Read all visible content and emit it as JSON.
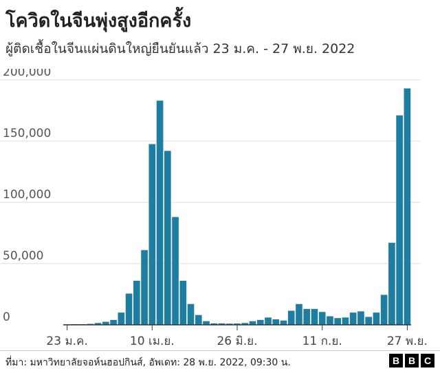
{
  "header": {
    "title": "โควิดในจีนพุ่งสูงอีกครั้ง",
    "subtitle": "ผู้ติดเชื้อในจีนแผ่นดินใหญ่ยืนยันแล้ว 23 ม.ค. - 27 พ.ย. 2022"
  },
  "footer": {
    "source": "ที่มา: มหาวิทยาลัยจอห์นฮอปกินส์, อัพเดท: 28 พ.ย. 2022, 09:30 น.",
    "logo_letters": [
      "B",
      "B",
      "C"
    ]
  },
  "colors": {
    "bar": "#1d7ea1",
    "gridline": "#dddddd",
    "axis": "#333333",
    "text": "#222222"
  },
  "chart_data": {
    "type": "bar",
    "title": "",
    "xlabel": "",
    "ylabel": "",
    "ylim": [
      0,
      200000
    ],
    "yticks": [
      0,
      50000,
      100000,
      150000,
      200000
    ],
    "ytick_labels": [
      "0",
      "50,000",
      "100,000",
      "150,000",
      "200,000"
    ],
    "xtick_labels": [
      "23 ม.ค.",
      "10 เม.ย.",
      "26 มิ.ย.",
      "11 ก.ย.",
      "27 พ.ย."
    ],
    "xtick_index": [
      0,
      11,
      22,
      33,
      44
    ],
    "grid": true,
    "values": [
      400,
      500,
      500,
      800,
      1500,
      2500,
      4000,
      10000,
      25500,
      36000,
      61000,
      147500,
      183000,
      142000,
      88000,
      36000,
      17000,
      8000,
      3000,
      1200,
      1200,
      1000,
      1100,
      1500,
      3000,
      4000,
      6000,
      4500,
      3500,
      11500,
      17000,
      13000,
      13000,
      10500,
      7000,
      5500,
      6000,
      10000,
      11000,
      6500,
      10000,
      24500,
      67000,
      171000,
      193000
    ]
  }
}
